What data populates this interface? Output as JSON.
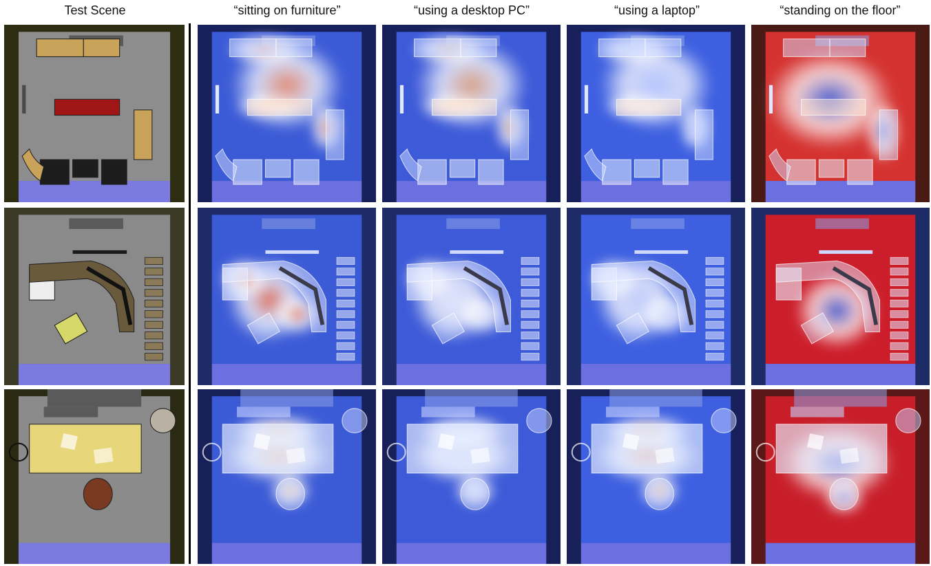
{
  "figure": {
    "column_headers": [
      "Test Scene",
      "“sitting on furniture”",
      "“using a desktop PC”",
      "“using a laptop”",
      "“standing on the floor”"
    ],
    "rows": [
      {
        "name": "scene-1",
        "cells": [
          {
            "kind": "photo",
            "scene": 1,
            "base": "#8d8d8d",
            "wall": "#2d2d12"
          },
          {
            "kind": "heatmap",
            "scene": 1,
            "base": "#3b5ad6",
            "wall": "#17205a",
            "hot": "#e98a6a"
          },
          {
            "kind": "heatmap",
            "scene": 1,
            "base": "#3d5ad8",
            "wall": "#17205a",
            "hot": "#e0a17d"
          },
          {
            "kind": "heatmap",
            "scene": 1,
            "base": "#3d5fe0",
            "wall": "#17205a",
            "hot": "#b8c8ff"
          },
          {
            "kind": "heatmap",
            "scene": 1,
            "base": "#d43230",
            "wall": "#4a1b14",
            "hot": "#3b5ad6"
          }
        ]
      },
      {
        "name": "scene-2",
        "cells": [
          {
            "kind": "photo",
            "scene": 2,
            "base": "#8a8a8a",
            "wall": "#3a3a26"
          },
          {
            "kind": "heatmap",
            "scene": 2,
            "base": "#3b5ad6",
            "wall": "#1d2b66",
            "hot": "#e46e52"
          },
          {
            "kind": "heatmap",
            "scene": 2,
            "base": "#3d5ad8",
            "wall": "#1d2b66",
            "hot": "#e8ecff"
          },
          {
            "kind": "heatmap",
            "scene": 2,
            "base": "#3d5fe0",
            "wall": "#1d2b66",
            "hot": "#c7d3ff"
          },
          {
            "kind": "heatmap",
            "scene": 2,
            "base": "#cc1d2a",
            "wall": "#1d2b66",
            "hot": "#3b5ad6"
          }
        ]
      },
      {
        "name": "scene-3",
        "cells": [
          {
            "kind": "photo",
            "scene": 3,
            "base": "#8b8b8b",
            "wall": "#2a2a12"
          },
          {
            "kind": "heatmap",
            "scene": 3,
            "base": "#3b5ad6",
            "wall": "#18205a",
            "hot": "#ecb28a"
          },
          {
            "kind": "heatmap",
            "scene": 3,
            "base": "#3d5ad8",
            "wall": "#18205a",
            "hot": "#c9d4ff"
          },
          {
            "kind": "heatmap",
            "scene": 3,
            "base": "#3d5fe0",
            "wall": "#18205a",
            "hot": "#e59a78"
          },
          {
            "kind": "heatmap",
            "scene": 3,
            "base": "#c81e2a",
            "wall": "#5a1818",
            "hot": "#3b5ad6"
          }
        ]
      }
    ]
  }
}
